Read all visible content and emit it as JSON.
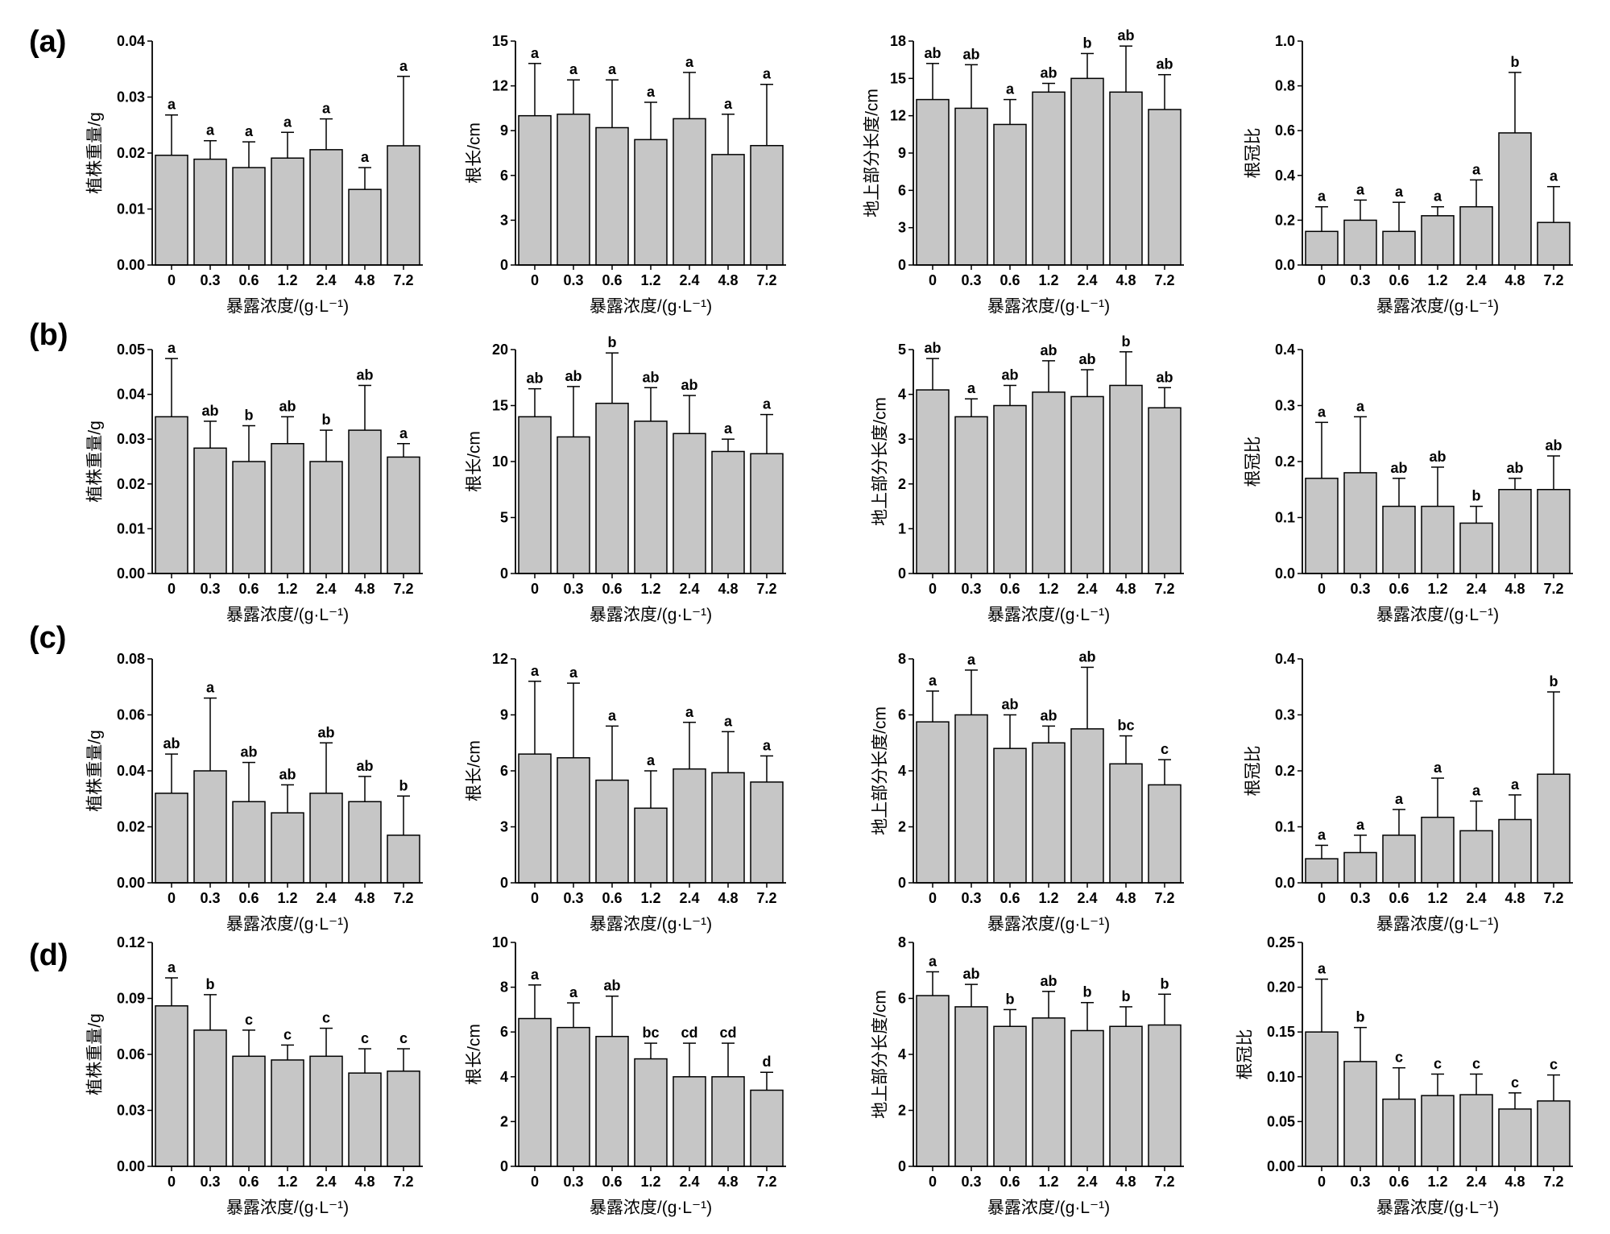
{
  "figure": {
    "panel_labels": [
      "(a)",
      "(b)",
      "(c)",
      "(d)"
    ]
  },
  "style": {
    "bar_fill": "#c6c6c6",
    "edge_color": "#000000"
  },
  "chart_data": [
    {
      "type": "bar",
      "ylabel": "植株重量/g",
      "xlabel": "暴露浓度/(g·L⁻¹)",
      "categories": [
        "0",
        "0.3",
        "0.6",
        "1.2",
        "2.4",
        "4.8",
        "7.2"
      ],
      "values": [
        0.0196,
        0.0189,
        0.0174,
        0.0191,
        0.0206,
        0.0135,
        0.0213
      ],
      "errors": [
        0.0072,
        0.0033,
        0.0046,
        0.0046,
        0.0055,
        0.0039,
        0.0124
      ],
      "letters": [
        "a",
        "a",
        "a",
        "a",
        "a",
        "a",
        "a"
      ],
      "ylim": [
        0,
        0.04
      ],
      "yticks": [
        "0.00",
        "0.01",
        "0.02",
        "0.03",
        "0.04"
      ],
      "grid": false
    },
    {
      "type": "bar",
      "ylabel": "根长/cm",
      "xlabel": "暴露浓度/(g·L⁻¹)",
      "categories": [
        "0",
        "0.3",
        "0.6",
        "1.2",
        "2.4",
        "4.8",
        "7.2"
      ],
      "values": [
        10.0,
        10.1,
        9.2,
        8.4,
        9.8,
        7.4,
        8.0
      ],
      "errors": [
        3.5,
        2.3,
        3.2,
        2.5,
        3.1,
        2.7,
        4.1
      ],
      "letters": [
        "a",
        "a",
        "a",
        "a",
        "a",
        "a",
        "a"
      ],
      "ylim": [
        0,
        15
      ],
      "yticks": [
        "0",
        "3",
        "6",
        "9",
        "12",
        "15"
      ],
      "grid": false
    },
    {
      "type": "bar",
      "ylabel": "地上部分长度/cm",
      "xlabel": "暴露浓度/(g·L⁻¹)",
      "categories": [
        "0",
        "0.3",
        "0.6",
        "1.2",
        "2.4",
        "4.8",
        "7.2"
      ],
      "values": [
        13.3,
        12.6,
        11.3,
        13.9,
        15.0,
        13.9,
        12.5
      ],
      "errors": [
        2.9,
        3.5,
        2.0,
        0.7,
        2.0,
        3.7,
        2.8
      ],
      "letters": [
        "ab",
        "ab",
        "a",
        "ab",
        "b",
        "ab",
        "ab"
      ],
      "ylim": [
        0,
        18
      ],
      "yticks": [
        "0",
        "3",
        "6",
        "9",
        "12",
        "15",
        "18"
      ],
      "grid": false
    },
    {
      "type": "bar",
      "ylabel": "根冠比",
      "xlabel": "暴露浓度/(g·L⁻¹)",
      "categories": [
        "0",
        "0.3",
        "0.6",
        "1.2",
        "2.4",
        "4.8",
        "7.2"
      ],
      "values": [
        0.15,
        0.2,
        0.15,
        0.22,
        0.26,
        0.59,
        0.19
      ],
      "errors": [
        0.11,
        0.09,
        0.13,
        0.04,
        0.12,
        0.27,
        0.16
      ],
      "letters": [
        "a",
        "a",
        "a",
        "a",
        "a",
        "b",
        "a"
      ],
      "ylim": [
        0,
        1.0
      ],
      "yticks": [
        "0.0",
        "0.2",
        "0.4",
        "0.6",
        "0.8",
        "1.0"
      ],
      "grid": false
    },
    {
      "type": "bar",
      "ylabel": "植株重量/g",
      "xlabel": "暴露浓度/(g·L⁻¹)",
      "categories": [
        "0",
        "0.3",
        "0.6",
        "1.2",
        "2.4",
        "4.8",
        "7.2"
      ],
      "values": [
        0.035,
        0.028,
        0.025,
        0.029,
        0.025,
        0.032,
        0.026
      ],
      "errors": [
        0.013,
        0.006,
        0.008,
        0.006,
        0.007,
        0.01,
        0.003
      ],
      "letters": [
        "a",
        "ab",
        "b",
        "ab",
        "b",
        "ab",
        "a"
      ],
      "ylim": [
        0,
        0.05
      ],
      "yticks": [
        "0.00",
        "0.01",
        "0.02",
        "0.03",
        "0.04",
        "0.05"
      ],
      "grid": false
    },
    {
      "type": "bar",
      "ylabel": "根长/cm",
      "xlabel": "暴露浓度/(g·L⁻¹)",
      "categories": [
        "0",
        "0.3",
        "0.6",
        "1.2",
        "2.4",
        "4.8",
        "7.2"
      ],
      "values": [
        14.0,
        12.2,
        15.2,
        13.6,
        12.5,
        10.9,
        10.7
      ],
      "errors": [
        2.5,
        4.5,
        4.5,
        3.0,
        3.4,
        1.1,
        3.5
      ],
      "letters": [
        "ab",
        "ab",
        "b",
        "ab",
        "ab",
        "a",
        "a"
      ],
      "ylim": [
        0,
        20
      ],
      "yticks": [
        "0",
        "5",
        "10",
        "15",
        "20"
      ],
      "grid": false
    },
    {
      "type": "bar",
      "ylabel": "地上部分长度/cm",
      "xlabel": "暴露浓度/(g·L⁻¹)",
      "categories": [
        "0",
        "0.3",
        "0.6",
        "1.2",
        "2.4",
        "4.8",
        "7.2"
      ],
      "values": [
        4.1,
        3.5,
        3.75,
        4.05,
        3.95,
        4.2,
        3.7
      ],
      "errors": [
        0.7,
        0.4,
        0.45,
        0.7,
        0.6,
        0.75,
        0.45
      ],
      "letters": [
        "ab",
        "a",
        "ab",
        "ab",
        "ab",
        "b",
        "ab"
      ],
      "ylim": [
        0,
        5
      ],
      "yticks": [
        "0",
        "1",
        "2",
        "3",
        "4",
        "5"
      ],
      "grid": false
    },
    {
      "type": "bar",
      "ylabel": "根冠比",
      "xlabel": "暴露浓度/(g·L⁻¹)",
      "categories": [
        "0",
        "0.3",
        "0.6",
        "1.2",
        "2.4",
        "4.8",
        "7.2"
      ],
      "values": [
        0.17,
        0.18,
        0.12,
        0.12,
        0.09,
        0.15,
        0.15
      ],
      "errors": [
        0.1,
        0.1,
        0.05,
        0.07,
        0.03,
        0.02,
        0.06
      ],
      "letters": [
        "a",
        "a",
        "ab",
        "ab",
        "b",
        "ab",
        "ab"
      ],
      "ylim": [
        0,
        0.4
      ],
      "yticks": [
        "0.0",
        "0.1",
        "0.2",
        "0.3",
        "0.4"
      ],
      "grid": false
    },
    {
      "type": "bar",
      "ylabel": "植株重量/g",
      "xlabel": "暴露浓度/(g·L⁻¹)",
      "categories": [
        "0",
        "0.3",
        "0.6",
        "1.2",
        "2.4",
        "4.8",
        "7.2"
      ],
      "values": [
        0.032,
        0.04,
        0.029,
        0.025,
        0.032,
        0.029,
        0.017
      ],
      "errors": [
        0.014,
        0.026,
        0.014,
        0.01,
        0.018,
        0.009,
        0.014
      ],
      "letters": [
        "ab",
        "a",
        "ab",
        "ab",
        "ab",
        "ab",
        "b"
      ],
      "ylim": [
        0,
        0.08
      ],
      "yticks": [
        "0.00",
        "0.02",
        "0.04",
        "0.06",
        "0.08"
      ],
      "grid": false
    },
    {
      "type": "bar",
      "ylabel": "根长/cm",
      "xlabel": "暴露浓度/(g·L⁻¹)",
      "categories": [
        "0",
        "0.3",
        "0.6",
        "1.2",
        "2.4",
        "4.8",
        "7.2"
      ],
      "values": [
        6.9,
        6.7,
        5.5,
        4.0,
        6.1,
        5.9,
        5.4
      ],
      "errors": [
        3.9,
        4.0,
        2.9,
        2.0,
        2.5,
        2.2,
        1.4
      ],
      "letters": [
        "a",
        "a",
        "a",
        "a",
        "a",
        "a",
        "a"
      ],
      "ylim": [
        0,
        12
      ],
      "yticks": [
        "0",
        "3",
        "6",
        "9",
        "12"
      ],
      "grid": false
    },
    {
      "type": "bar",
      "ylabel": "地上部分长度/cm",
      "xlabel": "暴露浓度/(g·L⁻¹)",
      "categories": [
        "0",
        "0.3",
        "0.6",
        "1.2",
        "2.4",
        "4.8",
        "7.2"
      ],
      "values": [
        5.75,
        6.0,
        4.8,
        5.0,
        5.5,
        4.25,
        3.5
      ],
      "errors": [
        1.1,
        1.6,
        1.2,
        0.6,
        2.2,
        1.0,
        0.9
      ],
      "letters": [
        "a",
        "a",
        "ab",
        "ab",
        "ab",
        "bc",
        "c"
      ],
      "ylim": [
        0,
        8
      ],
      "yticks": [
        "0",
        "2",
        "4",
        "6",
        "8"
      ],
      "grid": false
    },
    {
      "type": "bar",
      "ylabel": "根冠比",
      "xlabel": "暴露浓度/(g·L⁻¹)",
      "categories": [
        "0",
        "0.3",
        "0.6",
        "1.2",
        "2.4",
        "4.8",
        "7.2"
      ],
      "values": [
        0.043,
        0.054,
        0.085,
        0.117,
        0.093,
        0.113,
        0.194
      ],
      "errors": [
        0.024,
        0.031,
        0.046,
        0.07,
        0.053,
        0.044,
        0.147
      ],
      "letters": [
        "a",
        "a",
        "a",
        "a",
        "a",
        "a",
        "b"
      ],
      "ylim": [
        0,
        0.4
      ],
      "yticks": [
        "0.0",
        "0.1",
        "0.2",
        "0.3",
        "0.4"
      ],
      "grid": false
    },
    {
      "type": "bar",
      "ylabel": "植株重量/g",
      "xlabel": "暴露浓度/(g·L⁻¹)",
      "categories": [
        "0",
        "0.3",
        "0.6",
        "1.2",
        "2.4",
        "4.8",
        "7.2"
      ],
      "values": [
        0.086,
        0.073,
        0.059,
        0.057,
        0.059,
        0.05,
        0.051
      ],
      "errors": [
        0.015,
        0.019,
        0.014,
        0.008,
        0.015,
        0.013,
        0.012
      ],
      "letters": [
        "a",
        "b",
        "c",
        "c",
        "c",
        "c",
        "c"
      ],
      "ylim": [
        0,
        0.12
      ],
      "yticks": [
        "0.00",
        "0.03",
        "0.06",
        "0.09",
        "0.12"
      ],
      "grid": false
    },
    {
      "type": "bar",
      "ylabel": "根长/cm",
      "xlabel": "暴露浓度/(g·L⁻¹)",
      "categories": [
        "0",
        "0.3",
        "0.6",
        "1.2",
        "2.4",
        "4.8",
        "7.2"
      ],
      "values": [
        6.6,
        6.2,
        5.8,
        4.8,
        4.0,
        4.0,
        3.4
      ],
      "errors": [
        1.5,
        1.1,
        1.8,
        0.7,
        1.5,
        1.5,
        0.8
      ],
      "letters": [
        "a",
        "a",
        "ab",
        "bc",
        "cd",
        "cd",
        "d"
      ],
      "ylim": [
        0,
        10
      ],
      "yticks": [
        "0",
        "2",
        "4",
        "6",
        "8",
        "10"
      ],
      "grid": false
    },
    {
      "type": "bar",
      "ylabel": "地上部分长度/cm",
      "xlabel": "暴露浓度/(g·L⁻¹)",
      "categories": [
        "0",
        "0.3",
        "0.6",
        "1.2",
        "2.4",
        "4.8",
        "7.2"
      ],
      "values": [
        6.1,
        5.7,
        5.0,
        5.3,
        4.85,
        5.0,
        5.05
      ],
      "errors": [
        0.85,
        0.8,
        0.6,
        0.95,
        1.0,
        0.7,
        1.1
      ],
      "letters": [
        "a",
        "ab",
        "b",
        "ab",
        "b",
        "b",
        "b"
      ],
      "ylim": [
        0,
        8
      ],
      "yticks": [
        "0",
        "2",
        "4",
        "6",
        "8"
      ],
      "grid": false
    },
    {
      "type": "bar",
      "ylabel": "根冠比",
      "xlabel": "暴露浓度/(g·L⁻¹)",
      "categories": [
        "0",
        "0.3",
        "0.6",
        "1.2",
        "2.4",
        "4.8",
        "7.2"
      ],
      "values": [
        0.15,
        0.117,
        0.075,
        0.079,
        0.08,
        0.064,
        0.073
      ],
      "errors": [
        0.059,
        0.038,
        0.035,
        0.024,
        0.023,
        0.018,
        0.029
      ],
      "letters": [
        "a",
        "b",
        "c",
        "c",
        "c",
        "c",
        "c"
      ],
      "ylim": [
        0,
        0.25
      ],
      "yticks": [
        "0.00",
        "0.05",
        "0.10",
        "0.15",
        "0.20",
        "0.25"
      ],
      "grid": false
    }
  ]
}
